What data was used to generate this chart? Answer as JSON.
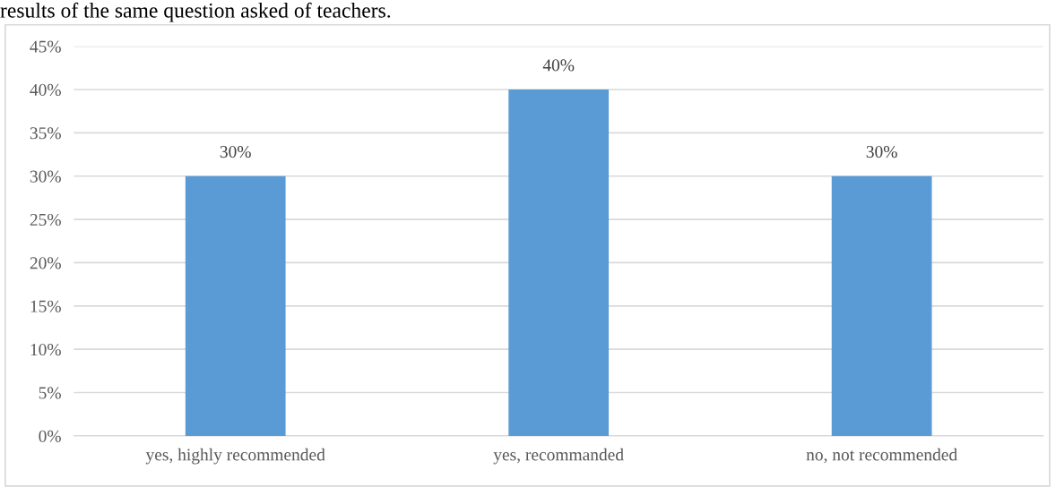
{
  "chart_data": {
    "type": "bar",
    "annotations": [
      "results of the same question asked of teachers."
    ],
    "categories": [
      "yes, highly recommended",
      "yes, recommanded",
      "no, not recommended"
    ],
    "values": [
      30,
      40,
      30
    ],
    "value_labels": [
      "30%",
      "40%",
      "30%"
    ],
    "color": "#5b9bd5",
    "ylim": [
      0,
      45
    ],
    "yticks": [
      {
        "value": 0,
        "label": "0%"
      },
      {
        "value": 5,
        "label": "5%"
      },
      {
        "value": 10,
        "label": "10%"
      },
      {
        "value": 15,
        "label": "15%"
      },
      {
        "value": 20,
        "label": "20%"
      },
      {
        "value": 25,
        "label": "25%"
      },
      {
        "value": 30,
        "label": "30%"
      },
      {
        "value": 35,
        "label": "35%"
      },
      {
        "value": 40,
        "label": "40%"
      },
      {
        "value": 45,
        "label": "45%"
      }
    ],
    "grid": "y"
  }
}
